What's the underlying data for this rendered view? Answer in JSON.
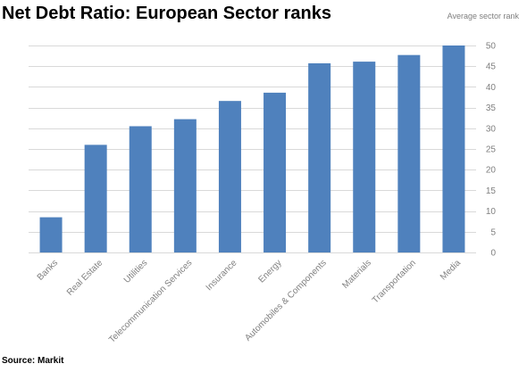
{
  "chart_data": {
    "type": "bar",
    "title": "Net Debt Ratio: European Sector ranks",
    "ylabel": "Average sector rank",
    "xlabel": "",
    "source": "Source: Markit",
    "categories": [
      "Banks",
      "Real Estate",
      "Utilities",
      "Telecommunication Services",
      "Insurance",
      "Energy",
      "Automobiles & Components",
      "Materials",
      "Transportation",
      "Media"
    ],
    "values": [
      8.5,
      26,
      30.5,
      32.2,
      36.6,
      38.6,
      45.7,
      46.1,
      47.7,
      50
    ],
    "ylim": [
      0,
      50
    ],
    "yticks": [
      0,
      5,
      10,
      15,
      20,
      25,
      30,
      35,
      40,
      45,
      50
    ],
    "y_axis_side": "right",
    "grid": true,
    "bar_color": "#4f81bd",
    "grid_color": "#d9d9d9"
  }
}
